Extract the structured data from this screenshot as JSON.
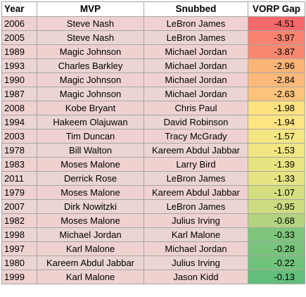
{
  "table": {
    "headers": [
      "Year",
      "MVP",
      "Snubbed",
      "VORP Gap"
    ],
    "row_bg": [
      "#efd2d0",
      "#ead5d3"
    ],
    "rows": [
      {
        "year": "2006",
        "mvp": "Steve Nash",
        "snubbed": "LeBron James",
        "gap": "-4.51",
        "gap_color": "#f8696b"
      },
      {
        "year": "2005",
        "mvp": "Steve Nash",
        "snubbed": "LeBron James",
        "gap": "-3.97",
        "gap_color": "#f98370"
      },
      {
        "year": "1989",
        "mvp": "Magic Johnson",
        "snubbed": "Michael Jordan",
        "gap": "-3.87",
        "gap_color": "#f98870"
      },
      {
        "year": "1993",
        "mvp": "Charles Barkley",
        "snubbed": "Michael Jordan",
        "gap": "-2.96",
        "gap_color": "#fbb478"
      },
      {
        "year": "1990",
        "mvp": "Magic Johnson",
        "snubbed": "Michael Jordan",
        "gap": "-2.84",
        "gap_color": "#fcb97a"
      },
      {
        "year": "1987",
        "mvp": "Magic Johnson",
        "snubbed": "Michael Jordan",
        "gap": "-2.63",
        "gap_color": "#fcc37c"
      },
      {
        "year": "2008",
        "mvp": "Kobe Bryant",
        "snubbed": "Chris Paul",
        "gap": "-1.98",
        "gap_color": "#fee282"
      },
      {
        "year": "1994",
        "mvp": "Hakeem Olajuwan",
        "snubbed": "David Robinson",
        "gap": "-1.94",
        "gap_color": "#fee483"
      },
      {
        "year": "2003",
        "mvp": "Tim Duncan",
        "snubbed": "Tracy McGrady",
        "gap": "-1.57",
        "gap_color": "#f4e783"
      },
      {
        "year": "1978",
        "mvp": "Bill Walton",
        "snubbed": "Kareem Abdul Jabbar",
        "gap": "-1.53",
        "gap_color": "#f1e683"
      },
      {
        "year": "1983",
        "mvp": "Moses Malone",
        "snubbed": "Larry Bird",
        "gap": "-1.39",
        "gap_color": "#e9e482"
      },
      {
        "year": "2011",
        "mvp": "Derrick Rose",
        "snubbed": "LeBron James",
        "gap": "-1.33",
        "gap_color": "#e5e382"
      },
      {
        "year": "1979",
        "mvp": "Moses Malone",
        "snubbed": "Kareem Abdul Jabbar",
        "gap": "-1.07",
        "gap_color": "#d4de81"
      },
      {
        "year": "2007",
        "mvp": "Dirk Nowitzki",
        "snubbed": "LeBron James",
        "gap": "-0.95",
        "gap_color": "#ccdc81"
      },
      {
        "year": "1982",
        "mvp": "Moses Malone",
        "snubbed": "Julius Irving",
        "gap": "-0.68",
        "gap_color": "#b2d47f"
      },
      {
        "year": "1998",
        "mvp": "Michael Jordan",
        "snubbed": "Karl Malone",
        "gap": "-0.33",
        "gap_color": "#7ec67c"
      },
      {
        "year": "1997",
        "mvp": "Karl Malone",
        "snubbed": "Michael Jordan",
        "gap": "-0.28",
        "gap_color": "#78c47c"
      },
      {
        "year": "1980",
        "mvp": "Kareem Abdul Jabbar",
        "snubbed": "Julius Irving",
        "gap": "-0.22",
        "gap_color": "#71c27b"
      },
      {
        "year": "1999",
        "mvp": "Karl Malone",
        "snubbed": "Jason Kidd",
        "gap": "-0.13",
        "gap_color": "#63be7b"
      }
    ]
  }
}
